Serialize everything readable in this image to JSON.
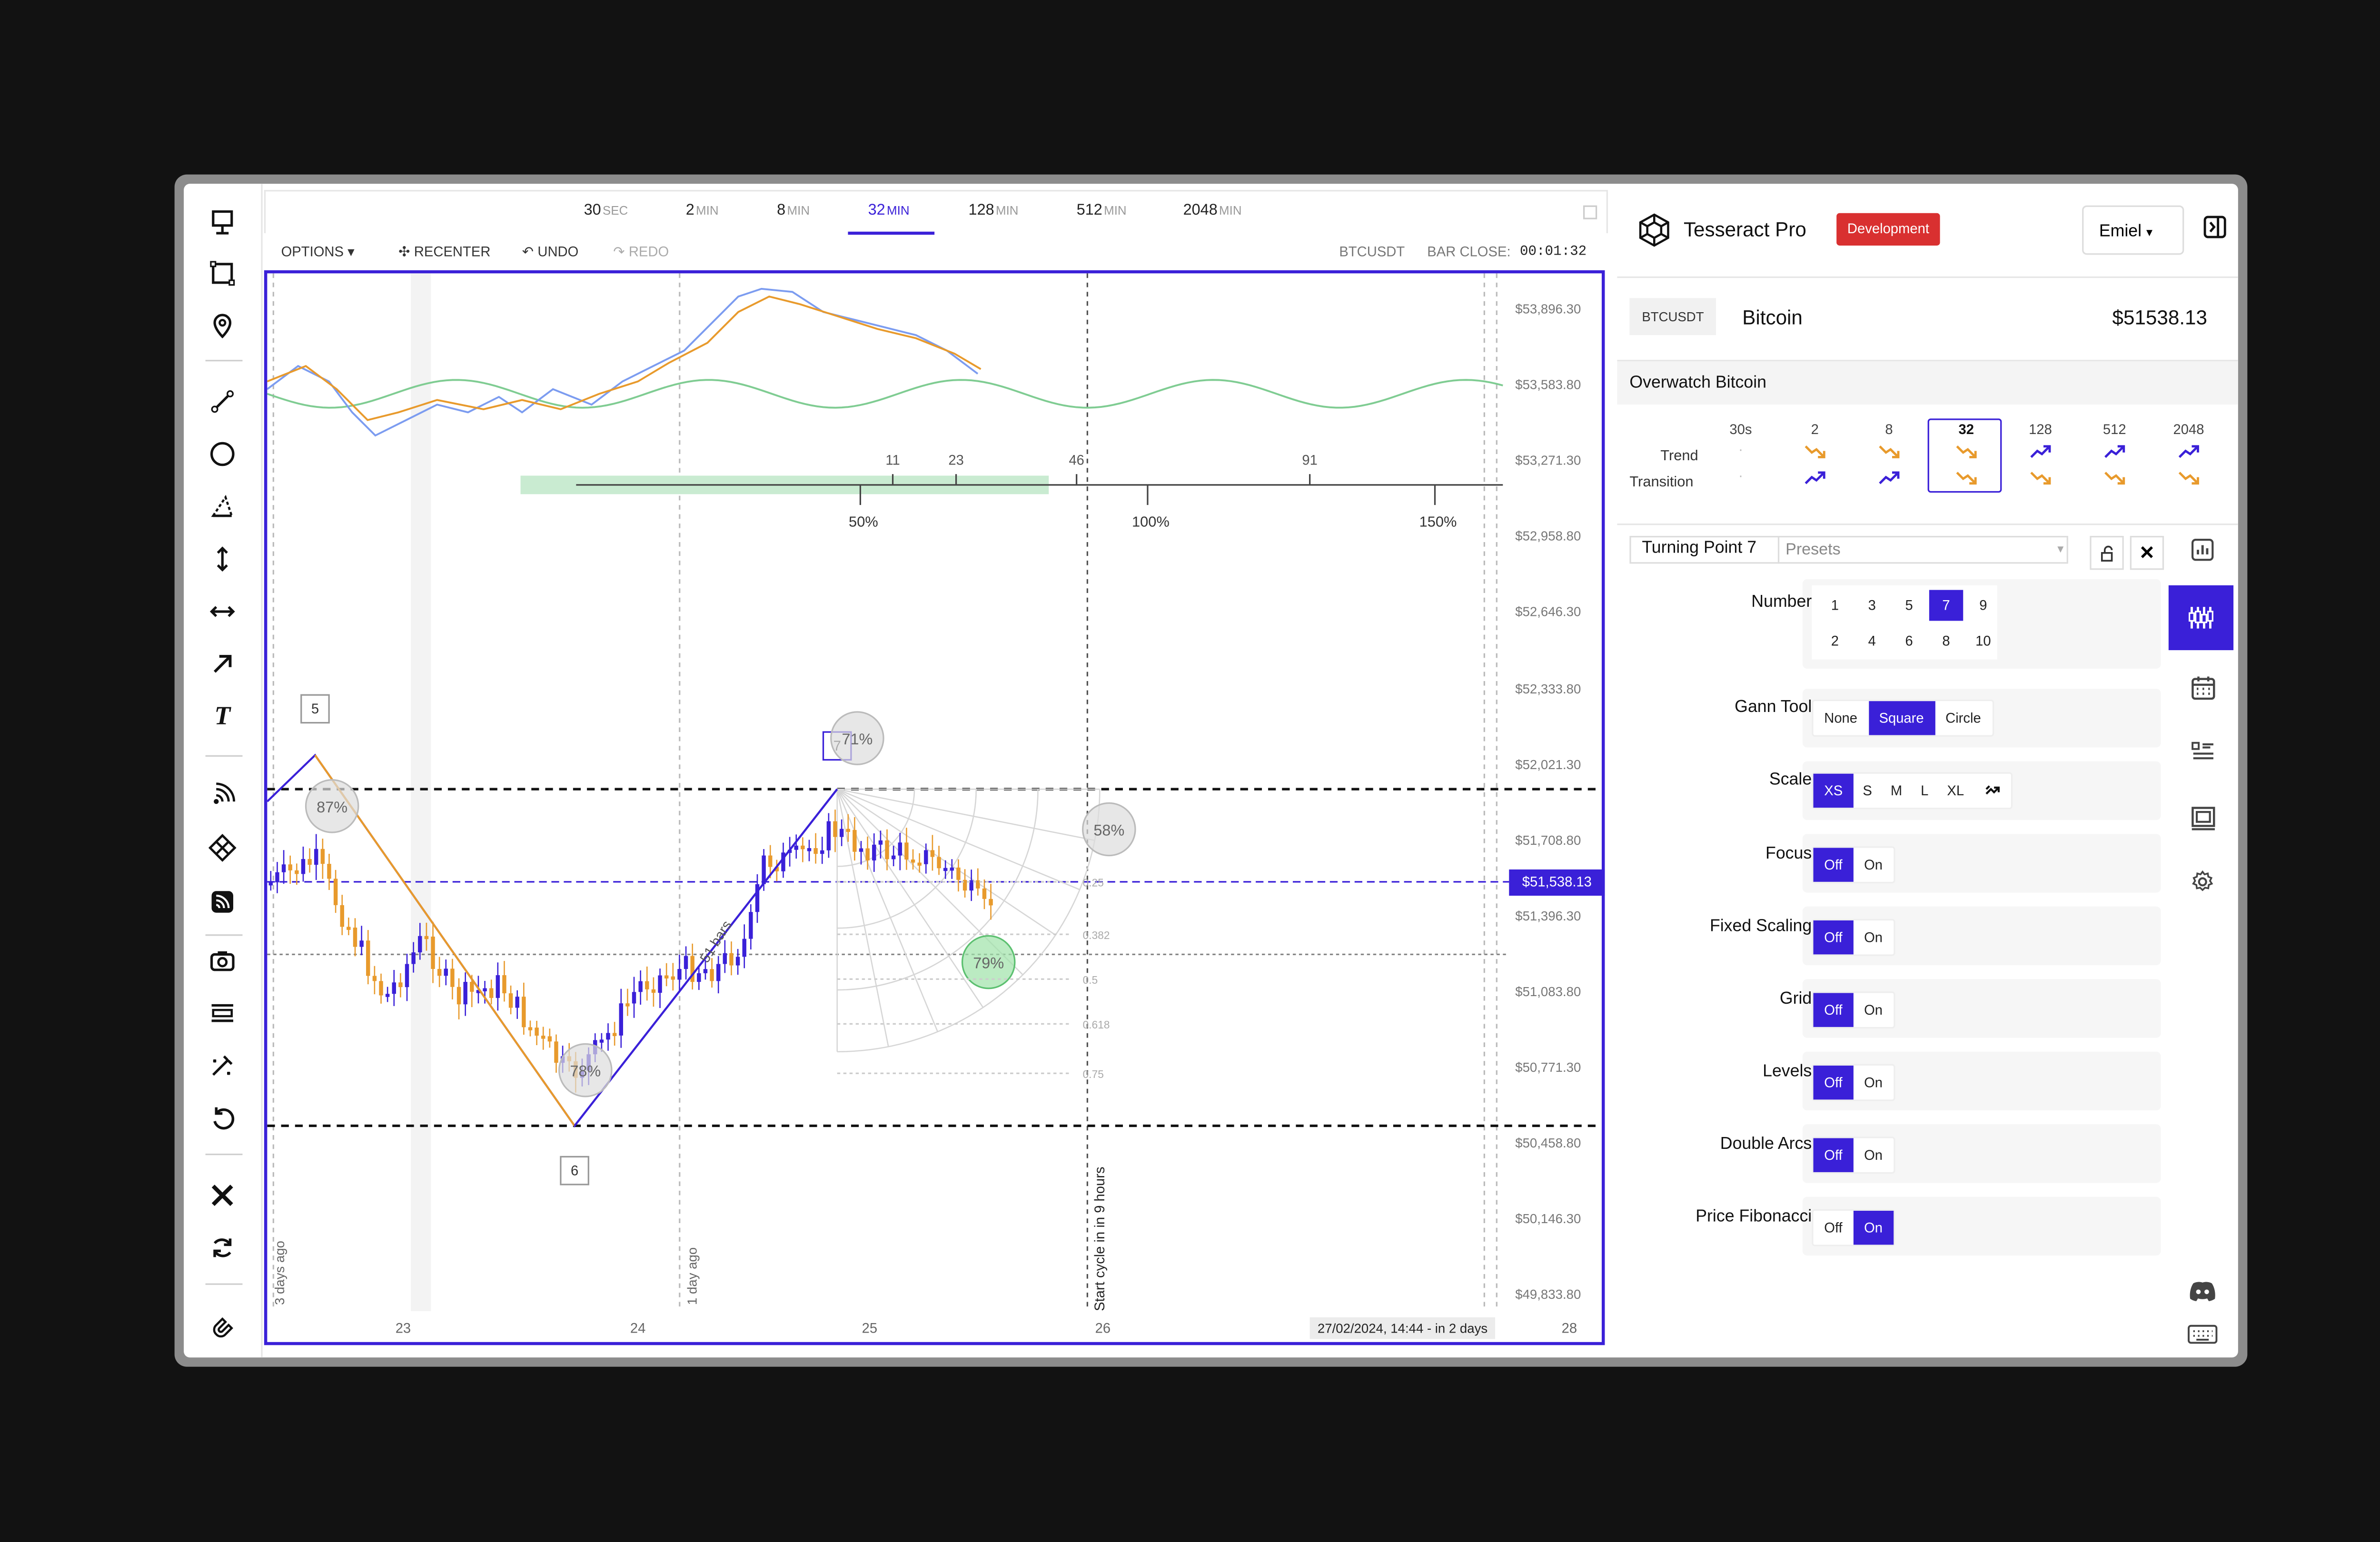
{
  "timeframes": [
    {
      "value": "30",
      "unit": "SEC"
    },
    {
      "value": "2",
      "unit": "MIN"
    },
    {
      "value": "8",
      "unit": "MIN"
    },
    {
      "value": "32",
      "unit": "MIN"
    },
    {
      "value": "128",
      "unit": "MIN"
    },
    {
      "value": "512",
      "unit": "MIN"
    },
    {
      "value": "2048",
      "unit": "MIN"
    }
  ],
  "options": {
    "options": "OPTIONS",
    "recenter": "RECENTER",
    "undo": "UNDO",
    "redo": "REDO",
    "symbol": "BTCUSDT",
    "bar_close_label": "BAR CLOSE:",
    "bar_close_value": "00:01:32"
  },
  "chart_data": {
    "type": "candlestick",
    "price_axis": [
      "$53,896.30",
      "$53,583.80",
      "$53,271.30",
      "$52,958.80",
      "$52,646.30",
      "$52,333.80",
      "$52,021.30",
      "$51,708.80",
      "$51,396.30",
      "$51,083.80",
      "$50,771.30",
      "$50,458.80",
      "$50,146.30",
      "$49,833.80"
    ],
    "current_price": "$51,538.13",
    "date_axis": [
      "23",
      "24",
      "25",
      "26",
      "28"
    ],
    "cycle_ticks": [
      "11",
      "23",
      "46",
      "91"
    ],
    "cycle_pcts": [
      "50%",
      "100%",
      "150%"
    ],
    "markers": [
      "5",
      "6",
      "7"
    ],
    "circle_pcts": [
      "87%",
      "78%",
      "71%",
      "58%",
      "79%"
    ],
    "fib_levels": [
      "0.25",
      "0.382",
      "0.5",
      "0.618",
      "0.75"
    ],
    "bars_label": "51 bars",
    "vlabels": [
      "3 days ago",
      "1 day ago",
      "Start cycle in in 9 hours"
    ],
    "tooltip": "27/02/2024, 14:44 - in 2 days"
  },
  "header": {
    "app_name": "Tesseract Pro",
    "env_badge": "Development",
    "user": "Emiel"
  },
  "asset": {
    "symbol": "BTCUSDT",
    "name": "Bitcoin",
    "price": "$51538.13"
  },
  "overwatch": {
    "title": "Overwatch Bitcoin",
    "row_labels": [
      "Trend",
      "Transition"
    ],
    "columns": [
      {
        "label": "30s",
        "trend": "·",
        "transition": "·"
      },
      {
        "label": "2",
        "trend": "down",
        "transition": "up"
      },
      {
        "label": "8",
        "trend": "down",
        "transition": "up"
      },
      {
        "label": "32",
        "trend": "down",
        "transition": "down"
      },
      {
        "label": "128",
        "trend": "up",
        "transition": "down"
      },
      {
        "label": "512",
        "trend": "up",
        "transition": "down"
      },
      {
        "label": "2048",
        "trend": "up",
        "transition": "down"
      }
    ],
    "up_color": "#3a20d8",
    "down_color": "#e89a2c"
  },
  "tool": {
    "name": "Turning Point 7",
    "presets_placeholder": "Presets"
  },
  "settings": {
    "number": {
      "label": "Number",
      "row1": [
        "1",
        "3",
        "5",
        "7",
        "9"
      ],
      "row2": [
        "2",
        "4",
        "6",
        "8",
        "10"
      ],
      "selected": "7"
    },
    "gann": {
      "label": "Gann Tool",
      "options": [
        "None",
        "Square",
        "Circle"
      ]
    },
    "scale": {
      "label": "Scale",
      "options": [
        "XS",
        "S",
        "M",
        "L",
        "XL"
      ]
    },
    "focus": {
      "label": "Focus"
    },
    "fixed_scaling": {
      "label": "Fixed Scaling"
    },
    "grid": {
      "label": "Grid"
    },
    "levels": {
      "label": "Levels"
    },
    "double_arcs": {
      "label": "Double Arcs"
    },
    "price_fib": {
      "label": "Price Fibonacci"
    },
    "off": "Off",
    "on": "On"
  },
  "colors": {
    "accent": "#3a20d8",
    "badge": "#d93030",
    "orange": "#e89a2c"
  }
}
